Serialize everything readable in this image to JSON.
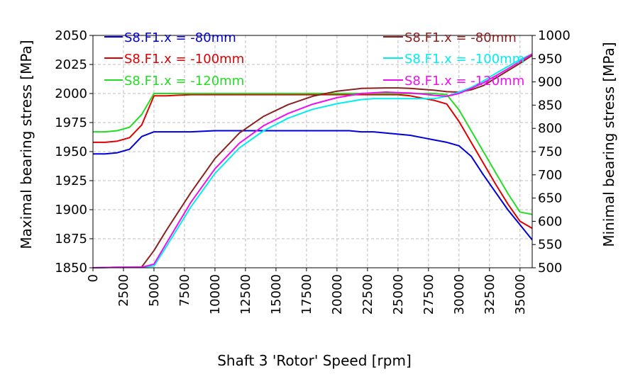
{
  "chart_data": {
    "type": "line",
    "xlabel": "Shaft 3 'Rotor' Speed [rpm]",
    "ylabel_left": "Maximal bearing stress [MPa]",
    "ylabel_right": "Minimal bearing stress [MPa]",
    "xlim": [
      0,
      36000
    ],
    "ylim_left": [
      1850,
      2050
    ],
    "ylim_right": [
      500,
      1000
    ],
    "x_ticks": [
      0,
      2500,
      5000,
      7500,
      10000,
      12500,
      15000,
      17500,
      20000,
      22500,
      25000,
      27500,
      30000,
      32500,
      35000
    ],
    "y_left_ticks": [
      1850,
      1875,
      1900,
      1925,
      1950,
      1975,
      2000,
      2025,
      2050
    ],
    "y_right_ticks": [
      500,
      550,
      600,
      650,
      700,
      750,
      800,
      850,
      900,
      950,
      1000
    ],
    "grid": true,
    "legend_left": {
      "placement": "top-left",
      "entries": [
        {
          "label": "S8.F1.x = -80mm",
          "color": "#0000d8"
        },
        {
          "label": "S8.F1.x = -100mm",
          "color": "#e00000"
        },
        {
          "label": "S8.F1.x = -120mm",
          "color": "#22dd22"
        }
      ]
    },
    "legend_right": {
      "placement": "top-right",
      "entries": [
        {
          "label": "S8.F1.x = -80mm",
          "color": "#8b2020"
        },
        {
          "label": "S8.F1.x = -100mm",
          "color": "#00eeee"
        },
        {
          "label": "S8.F1.x = -120mm",
          "color": "#ee10ee"
        }
      ]
    },
    "series": [
      {
        "name": "S8.F1.x = -80mm",
        "axis": "left",
        "color": "#0000d8",
        "x": [
          0,
          1000,
          2000,
          3000,
          4000,
          5000,
          6000,
          8000,
          10000,
          12000,
          14000,
          16000,
          18000,
          20000,
          21000,
          22000,
          23000,
          24000,
          25000,
          26000,
          27000,
          28000,
          29000,
          30000,
          31000,
          32000,
          33000,
          34000,
          35000,
          36000
        ],
        "y": [
          1948,
          1948,
          1949,
          1952,
          1963,
          1967,
          1967,
          1967,
          1968,
          1968,
          1968,
          1968,
          1968,
          1968,
          1968,
          1967,
          1967,
          1966,
          1965,
          1964,
          1962,
          1960,
          1958,
          1955,
          1946,
          1930,
          1915,
          1900,
          1887,
          1874
        ]
      },
      {
        "name": "S8.F1.x = -100mm",
        "axis": "left",
        "color": "#e00000",
        "x": [
          0,
          1000,
          2000,
          3000,
          4000,
          5000,
          6000,
          8000,
          10000,
          12000,
          14000,
          16000,
          18000,
          20000,
          22000,
          24000,
          25000,
          26000,
          27000,
          28000,
          29000,
          30000,
          31000,
          32000,
          33000,
          34000,
          35000,
          36000
        ],
        "y": [
          1958,
          1958,
          1959,
          1962,
          1973,
          1998,
          1998,
          1999,
          1999,
          1999,
          1999,
          1999,
          1999,
          1999,
          1999,
          1999,
          1999,
          1998,
          1996,
          1994,
          1991,
          1976,
          1958,
          1940,
          1922,
          1905,
          1890,
          1884
        ]
      },
      {
        "name": "S8.F1.x = -120mm",
        "axis": "left",
        "color": "#22dd22",
        "x": [
          0,
          1000,
          2000,
          3000,
          4000,
          5000,
          6000,
          8000,
          10000,
          12000,
          14000,
          16000,
          18000,
          20000,
          22000,
          24000,
          25000,
          26000,
          27000,
          28000,
          29000,
          30000,
          31000,
          32000,
          33000,
          34000,
          35000,
          36000
        ],
        "y": [
          1967,
          1967,
          1968,
          1971,
          1982,
          2000,
          2000,
          2000,
          2000,
          2000,
          2000,
          2000,
          2000,
          2000,
          2000,
          2000,
          2000,
          2000,
          2000,
          2000,
          1999,
          1986,
          1968,
          1950,
          1932,
          1914,
          1898,
          1896
        ]
      },
      {
        "name": "S8.F1.x = -80mm",
        "axis": "right",
        "color": "#8b2020",
        "x": [
          0,
          2000,
          4000,
          5000,
          6000,
          8000,
          10000,
          12000,
          14000,
          16000,
          18000,
          20000,
          22000,
          24000,
          25000,
          26000,
          27000,
          28000,
          29000,
          30000,
          31000,
          32000,
          33000,
          34000,
          35000,
          36000
        ],
        "y": [
          500,
          501,
          502,
          537,
          580,
          661,
          735,
          790,
          826,
          851,
          869,
          880,
          886,
          887,
          887,
          886,
          884,
          882,
          879,
          878,
          883,
          892,
          908,
          924,
          940,
          957
        ]
      },
      {
        "name": "S8.F1.x = -100mm",
        "axis": "right",
        "color": "#00eeee",
        "x": [
          0,
          2000,
          4000,
          5000,
          6000,
          8000,
          10000,
          12000,
          14000,
          16000,
          18000,
          20000,
          22000,
          23000,
          24000,
          25000,
          26000,
          27000,
          28000,
          29000,
          30000,
          31000,
          32000,
          33000,
          34000,
          35000,
          36000
        ],
        "y": [
          500,
          501,
          501,
          504,
          545,
          630,
          703,
          758,
          795,
          822,
          841,
          853,
          862,
          864,
          864,
          864,
          864,
          864,
          864,
          869,
          878,
          888,
          902,
          918,
          933,
          948,
          960
        ]
      },
      {
        "name": "S8.F1.x = -120mm",
        "axis": "right",
        "color": "#ee10ee",
        "x": [
          0,
          2000,
          4000,
          5000,
          6000,
          8000,
          10000,
          12000,
          14000,
          16000,
          18000,
          20000,
          22000,
          24000,
          25000,
          26000,
          27000,
          28000,
          29000,
          30000,
          31000,
          32000,
          33000,
          34000,
          35000,
          36000
        ],
        "y": [
          500,
          501,
          501,
          508,
          552,
          640,
          713,
          768,
          806,
          832,
          852,
          866,
          875,
          878,
          877,
          876,
          874,
          871,
          869,
          875,
          886,
          898,
          913,
          928,
          944,
          960
        ]
      }
    ]
  }
}
